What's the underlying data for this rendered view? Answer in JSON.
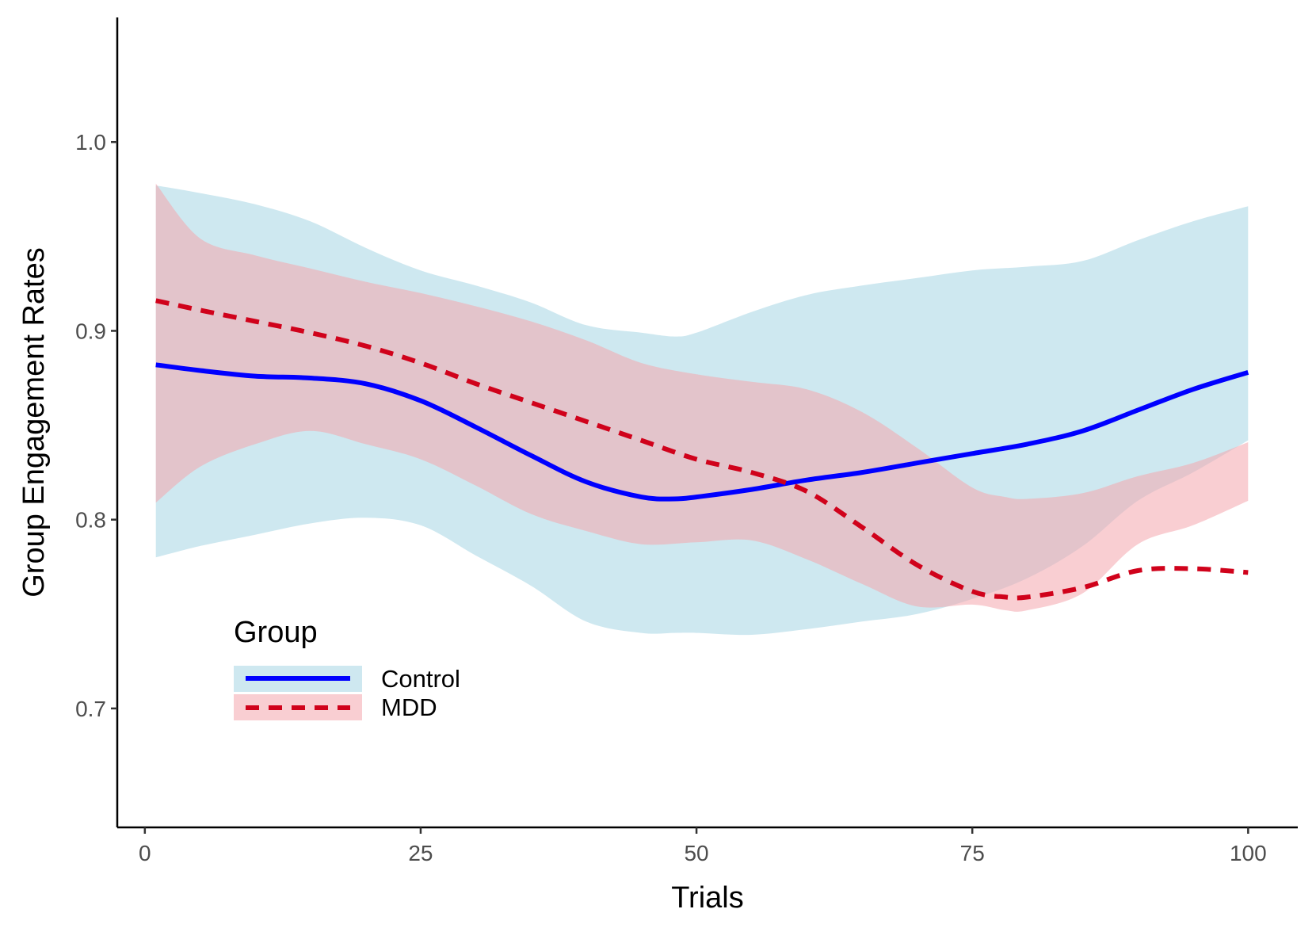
{
  "chart_data": {
    "type": "line",
    "title": "",
    "xlabel": "Trials",
    "ylabel": "Group Engagement Rates",
    "xlim": [
      -2.5,
      104.5
    ],
    "ylim": [
      0.637,
      1.066
    ],
    "x_ticks": [
      0,
      25,
      50,
      75,
      100
    ],
    "x_tick_labels": [
      "0",
      "25",
      "50",
      "75",
      "100"
    ],
    "y_ticks": [
      0.7,
      0.8,
      0.9,
      1.0
    ],
    "y_tick_labels": [
      "0.7",
      "0.8",
      "0.9",
      "1.0"
    ],
    "grid": false,
    "legend": {
      "title": "Group",
      "position": "bottom-left inside"
    },
    "series": [
      {
        "name": "Control",
        "color": "#0000ff",
        "ribbon_color": "#add8e6",
        "line_style": "solid",
        "x": [
          1,
          5,
          10,
          15,
          20,
          25,
          30,
          35,
          40,
          45,
          48,
          50,
          55,
          60,
          65,
          70,
          75,
          80,
          85,
          90,
          95,
          100
        ],
        "y": [
          0.882,
          0.879,
          0.876,
          0.875,
          0.872,
          0.863,
          0.849,
          0.834,
          0.82,
          0.812,
          0.811,
          0.812,
          0.816,
          0.821,
          0.825,
          0.83,
          0.835,
          0.84,
          0.847,
          0.858,
          0.869,
          0.878
        ],
        "upper": [
          0.977,
          0.973,
          0.967,
          0.958,
          0.944,
          0.932,
          0.924,
          0.915,
          0.903,
          0.899,
          0.897,
          0.899,
          0.91,
          0.919,
          0.924,
          0.928,
          0.932,
          0.934,
          0.937,
          0.948,
          0.958,
          0.966
        ],
        "lower": [
          0.78,
          0.786,
          0.792,
          0.798,
          0.801,
          0.797,
          0.781,
          0.765,
          0.746,
          0.74,
          0.74,
          0.74,
          0.739,
          0.742,
          0.746,
          0.75,
          0.758,
          0.769,
          0.786,
          0.81,
          0.825,
          0.842
        ]
      },
      {
        "name": "MDD",
        "color": "#d0021b",
        "ribbon_color": "#f4a6ad",
        "line_style": "dashed",
        "x": [
          1,
          5,
          10,
          15,
          20,
          25,
          30,
          35,
          40,
          45,
          50,
          55,
          60,
          65,
          70,
          75,
          78,
          80,
          85,
          90,
          95,
          100
        ],
        "y": [
          0.916,
          0.911,
          0.905,
          0.899,
          0.892,
          0.883,
          0.872,
          0.862,
          0.852,
          0.842,
          0.832,
          0.825,
          0.815,
          0.796,
          0.776,
          0.762,
          0.759,
          0.759,
          0.764,
          0.773,
          0.774,
          0.772
        ],
        "upper": [
          0.978,
          0.949,
          0.94,
          0.933,
          0.926,
          0.92,
          0.913,
          0.905,
          0.895,
          0.883,
          0.877,
          0.873,
          0.869,
          0.857,
          0.838,
          0.817,
          0.812,
          0.811,
          0.814,
          0.823,
          0.83,
          0.841
        ],
        "lower": [
          0.809,
          0.828,
          0.84,
          0.847,
          0.84,
          0.832,
          0.818,
          0.803,
          0.794,
          0.787,
          0.788,
          0.789,
          0.779,
          0.766,
          0.754,
          0.755,
          0.752,
          0.752,
          0.761,
          0.787,
          0.797,
          0.81
        ]
      }
    ]
  }
}
